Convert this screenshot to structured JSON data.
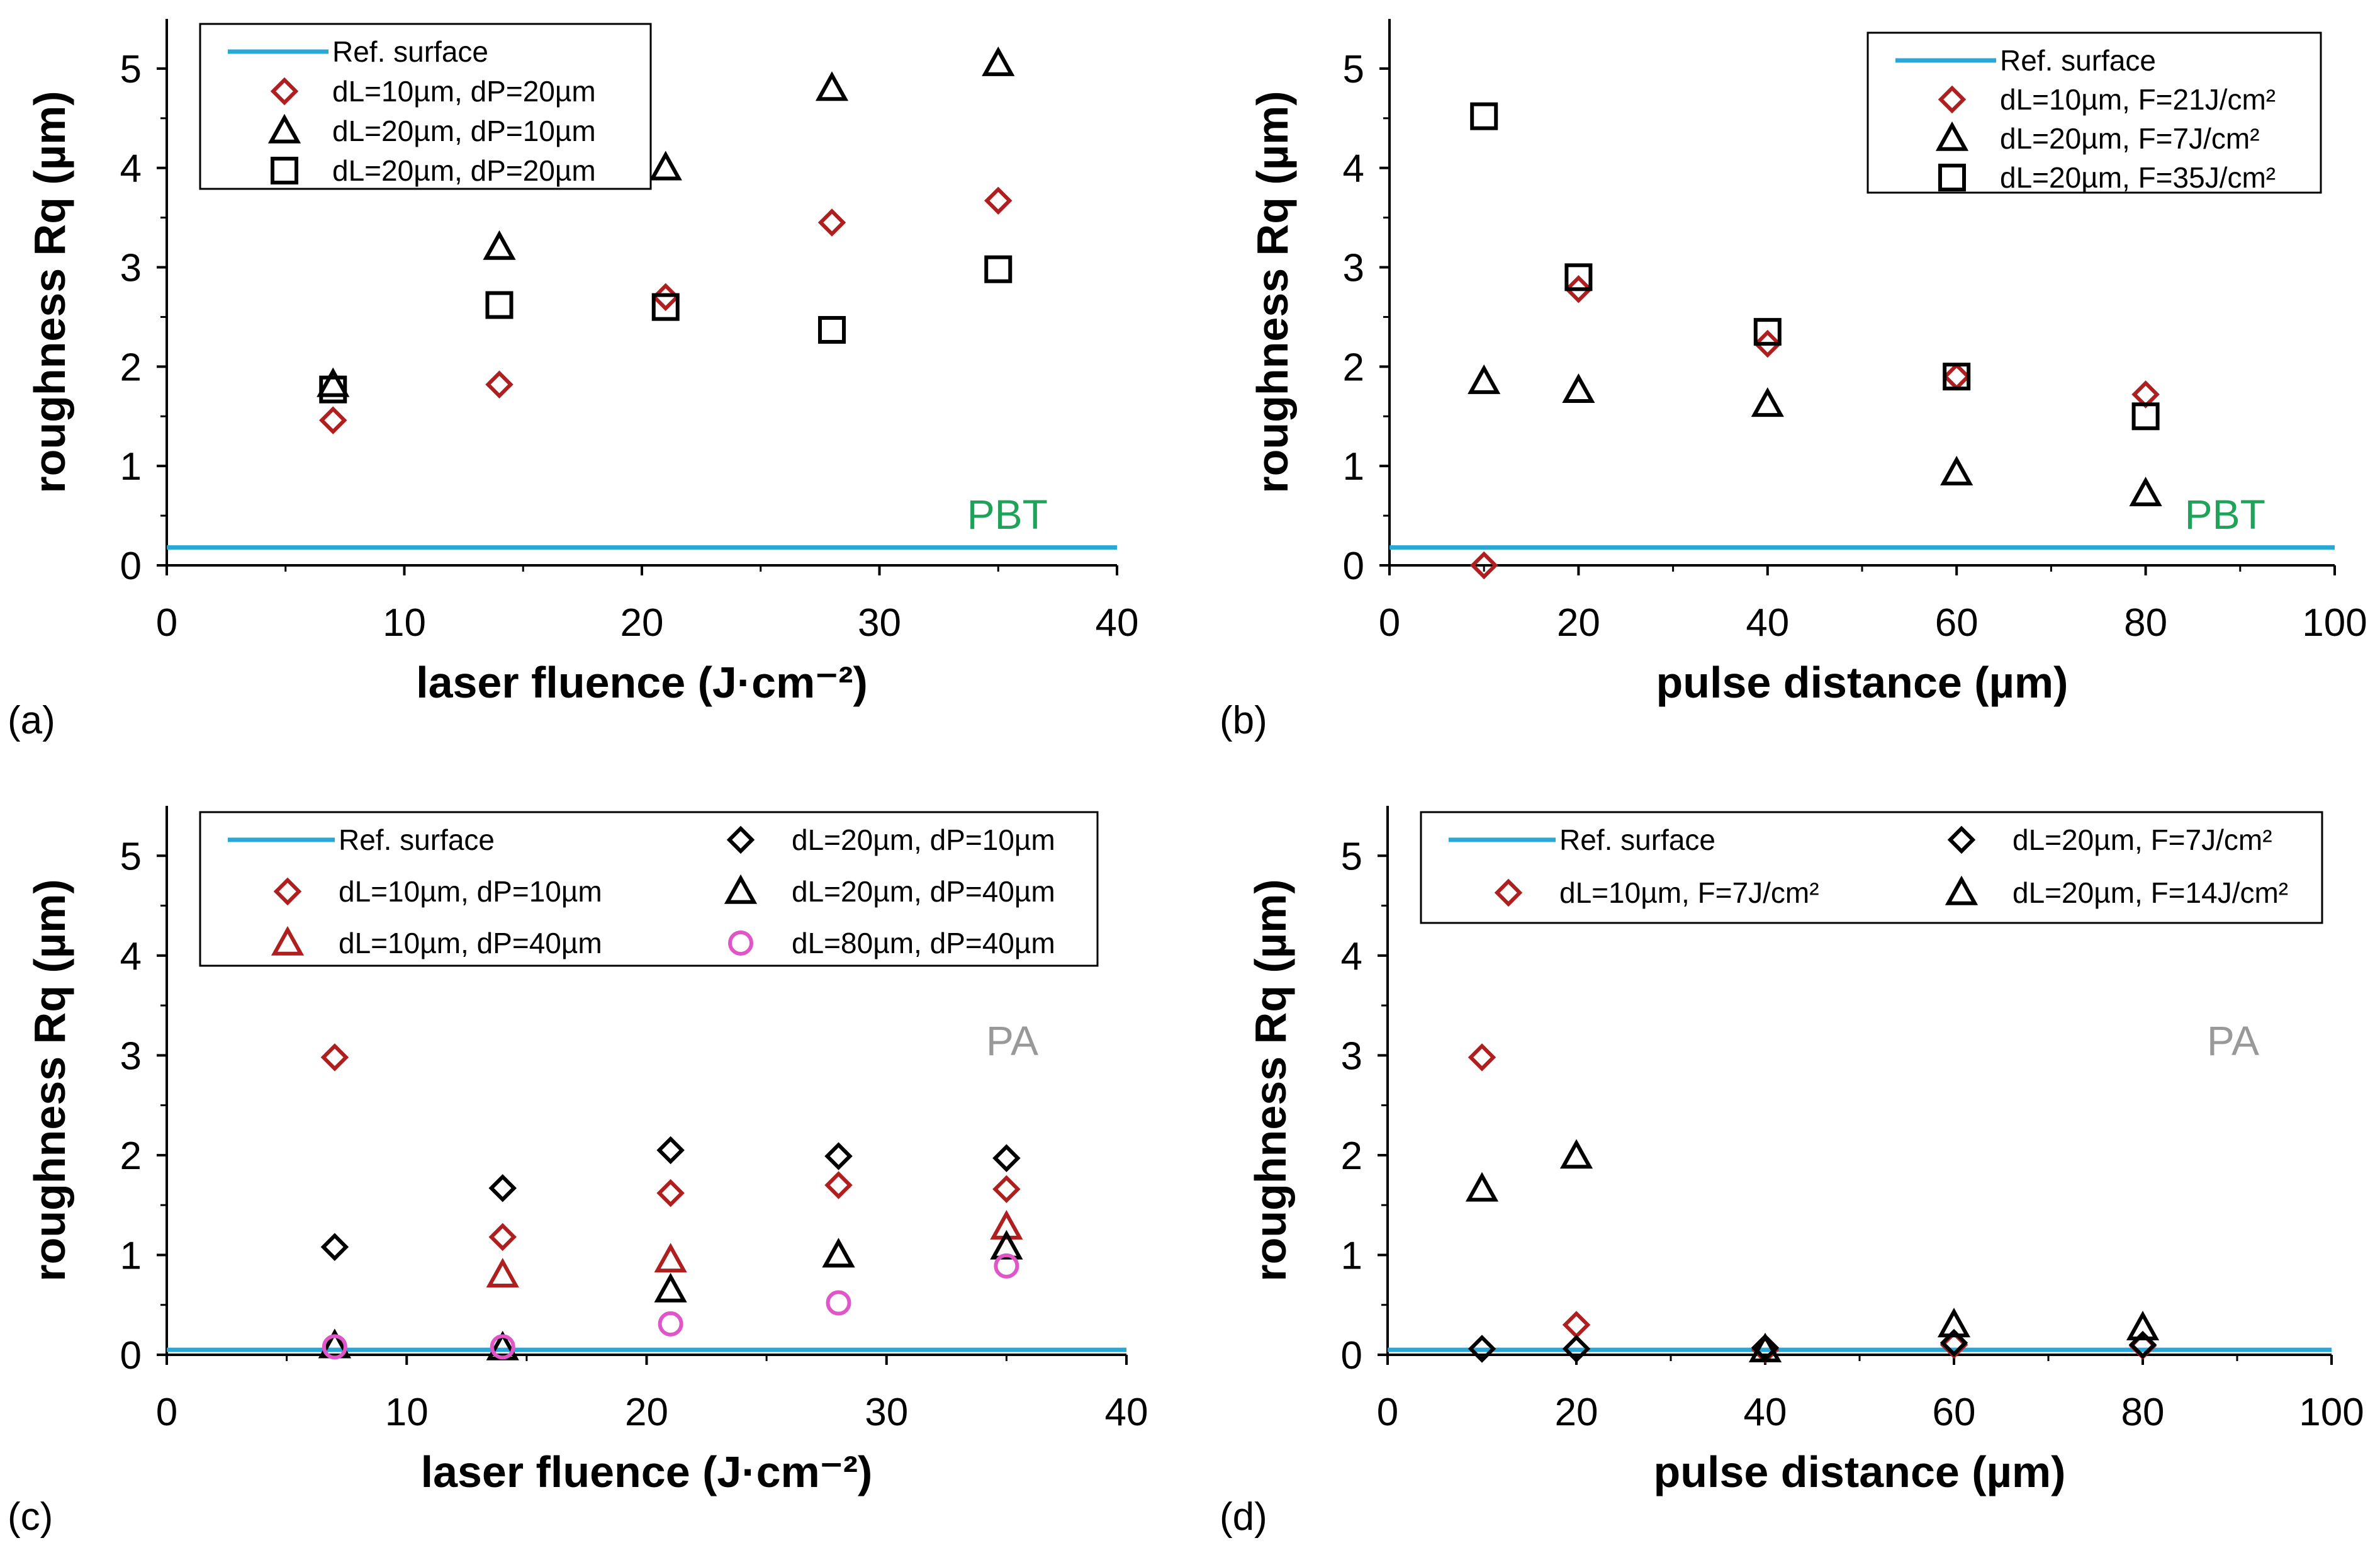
{
  "colors": {
    "ref_line": "#29A8D8",
    "red": "#B01F1F",
    "black": "#000000",
    "magenta": "#E055C8",
    "pbt_label": "#1FA35A",
    "pa_label": "#999999"
  },
  "chart_data": [
    {
      "id": "a",
      "panel_label": "(a)",
      "type": "scatter",
      "material": "PBT",
      "material_color": "pbt_label",
      "xlabel": "laser fluence (J·cm⁻²)",
      "ylabel": "roughness Rq (µm)",
      "xlim": [
        0,
        40
      ],
      "ylim": [
        0,
        5.5
      ],
      "xticks": [
        0,
        10,
        20,
        30,
        40
      ],
      "yticks": [
        0,
        1,
        2,
        3,
        4,
        5
      ],
      "reference": {
        "name": "Ref. surface",
        "y": 0.18
      },
      "series": [
        {
          "name": "dL=10µm, dP=20µm",
          "marker": "diamond",
          "color": "red",
          "x": [
            7,
            14,
            21,
            28,
            35
          ],
          "y": [
            1.46,
            1.82,
            2.7,
            3.45,
            3.67
          ]
        },
        {
          "name": "dL=20µm, dP=10µm",
          "marker": "triangle",
          "color": "black",
          "x": [
            7,
            14,
            21,
            28,
            35
          ],
          "y": [
            1.82,
            3.2,
            4.0,
            4.8,
            5.05
          ]
        },
        {
          "name": "dL=20µm, dP=20µm",
          "marker": "square",
          "color": "black",
          "x": [
            7,
            14,
            21,
            28,
            35
          ],
          "y": [
            1.77,
            2.62,
            2.6,
            2.37,
            2.98
          ]
        }
      ]
    },
    {
      "id": "b",
      "panel_label": "(b)",
      "type": "scatter",
      "material": "PBT",
      "material_color": "pbt_label",
      "xlabel": "pulse distance (µm)",
      "ylabel": "roughness Rq (µm)",
      "xlim": [
        0,
        100
      ],
      "ylim": [
        0,
        5.5
      ],
      "xticks": [
        0,
        20,
        40,
        60,
        80,
        100
      ],
      "yticks": [
        0,
        1,
        2,
        3,
        4,
        5
      ],
      "reference": {
        "name": "Ref. surface",
        "y": 0.18
      },
      "series": [
        {
          "name": "dL=10µm, F=21J/cm²",
          "marker": "diamond",
          "color": "red",
          "x": [
            10,
            20,
            40,
            60,
            80
          ],
          "y": [
            0.0,
            2.78,
            2.23,
            1.9,
            1.72
          ]
        },
        {
          "name": "dL=20µm, F=7J/cm²",
          "marker": "triangle",
          "color": "black",
          "x": [
            10,
            20,
            40,
            60,
            80
          ],
          "y": [
            1.85,
            1.76,
            1.62,
            0.93,
            0.72
          ]
        },
        {
          "name": "dL=20µm, F=35J/cm²",
          "marker": "square",
          "color": "black",
          "x": [
            10,
            20,
            40,
            60,
            80
          ],
          "y": [
            4.52,
            2.9,
            2.35,
            1.9,
            1.5
          ]
        }
      ]
    },
    {
      "id": "c",
      "panel_label": "(c)",
      "type": "scatter",
      "material": "PA",
      "material_color": "pa_label",
      "xlabel": "laser fluence (J·cm⁻²)",
      "ylabel": "roughness Rq (µm)",
      "xlim": [
        0,
        40
      ],
      "ylim": [
        0,
        5.5
      ],
      "xticks": [
        0,
        10,
        20,
        30,
        40
      ],
      "yticks": [
        0,
        1,
        2,
        3,
        4,
        5
      ],
      "reference": {
        "name": "Ref. surface",
        "y": 0.05
      },
      "series": [
        {
          "name": "dL=10µm, dP=10µm",
          "marker": "diamond",
          "color": "red",
          "x": [
            7,
            14,
            21,
            28,
            35
          ],
          "y": [
            2.98,
            1.18,
            1.62,
            1.7,
            1.66
          ]
        },
        {
          "name": "dL=10µm, dP=40µm",
          "marker": "triangle",
          "color": "red",
          "x": [
            7,
            14,
            21,
            28,
            35
          ],
          "y": [
            0.09,
            0.8,
            0.95,
            1.0,
            1.28
          ]
        },
        {
          "name": "dL=20µm, dP=10µm",
          "marker": "diamond",
          "color": "black",
          "x": [
            7,
            14,
            21,
            28,
            35
          ],
          "y": [
            1.08,
            1.67,
            2.05,
            1.99,
            1.97
          ]
        },
        {
          "name": "dL=20µm, dP=40µm",
          "marker": "triangle",
          "color": "black",
          "x": [
            7,
            14,
            21,
            28,
            35
          ],
          "y": [
            0.09,
            0.07,
            0.65,
            1.0,
            1.08
          ]
        },
        {
          "name": "dL=80µm, dP=40µm",
          "marker": "circle",
          "color": "magenta",
          "x": [
            7,
            14,
            21,
            28,
            35
          ],
          "y": [
            0.08,
            0.08,
            0.31,
            0.52,
            0.89
          ]
        }
      ]
    },
    {
      "id": "d",
      "panel_label": "(d)",
      "type": "scatter",
      "material": "PA",
      "material_color": "pa_label",
      "xlabel": "pulse distance (µm)",
      "ylabel": "roughness Rq (µm)",
      "xlim": [
        0,
        100
      ],
      "ylim": [
        0,
        5.5
      ],
      "xticks": [
        0,
        20,
        40,
        60,
        80,
        100
      ],
      "yticks": [
        0,
        1,
        2,
        3,
        4,
        5
      ],
      "reference": {
        "name": "Ref. surface",
        "y": 0.05
      },
      "series": [
        {
          "name": "dL=10µm, F=7J/cm²",
          "marker": "diamond",
          "color": "red",
          "x": [
            10,
            20,
            40,
            60,
            80
          ],
          "y": [
            2.98,
            0.3,
            0.05,
            0.1,
            0.09
          ]
        },
        {
          "name": "dL=20µm, F=7J/cm²",
          "marker": "diamond",
          "color": "black",
          "x": [
            10,
            20,
            40,
            60,
            80
          ],
          "y": [
            0.06,
            0.06,
            0.07,
            0.12,
            0.1
          ]
        },
        {
          "name": "dL=20µm, F=14J/cm²",
          "marker": "triangle",
          "color": "black",
          "x": [
            10,
            20,
            40,
            60,
            80
          ],
          "y": [
            1.66,
            1.99,
            0.05,
            0.3,
            0.27
          ]
        }
      ]
    }
  ]
}
